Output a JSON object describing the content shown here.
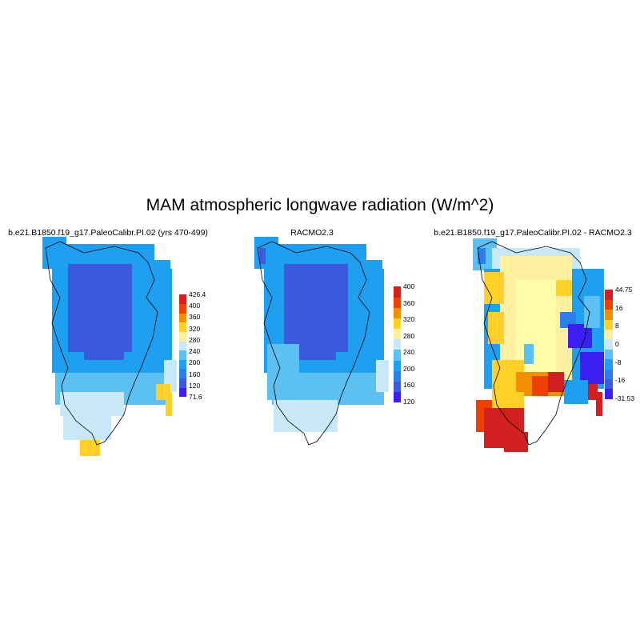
{
  "title": "MAM atmospheric longwave radiation (W/m^2)",
  "panels": [
    {
      "title": "b.e21.B1850.f19_g17.PaleoCalibr.PI.02 (yrs 470-499)",
      "colorbar": {
        "colors": [
          "#3c1ef0",
          "#3a5cdc",
          "#2a7fe8",
          "#1e9ff0",
          "#5cc0f0",
          "#c8e8f8",
          "#fff0a0",
          "#ffd028",
          "#f09000",
          "#f04000",
          "#d22020"
        ],
        "labels": [
          "71.6",
          "120",
          "160",
          "200",
          "240",
          "280",
          "320",
          "360",
          "400",
          "426.4"
        ]
      }
    },
    {
      "title": "RACMO2.3",
      "colorbar": {
        "colors": [
          "#3c1ef0",
          "#3a5cdc",
          "#2a7fe8",
          "#1e9ff0",
          "#5cc0f0",
          "#c8e8f8",
          "#fff0a0",
          "#ffd028",
          "#f09000",
          "#f04000",
          "#d22020"
        ],
        "labels": [
          "120",
          "160",
          "200",
          "240",
          "280",
          "320",
          "360",
          "400"
        ]
      }
    },
    {
      "title": "b.e21.B1850.f19_g17.PaleoCalibr.PI.02 - RACMO2.3",
      "colorbar": {
        "colors": [
          "#3c1ef0",
          "#3a5cdc",
          "#2a7fe8",
          "#1e9ff0",
          "#5cc0f0",
          "#c8e8f8",
          "#fff0a0",
          "#ffd028",
          "#f09000",
          "#f04000",
          "#d22020"
        ],
        "labels": [
          "-31.53",
          "-16",
          "-8",
          "0",
          "8",
          "16",
          "44.75"
        ]
      }
    }
  ]
}
